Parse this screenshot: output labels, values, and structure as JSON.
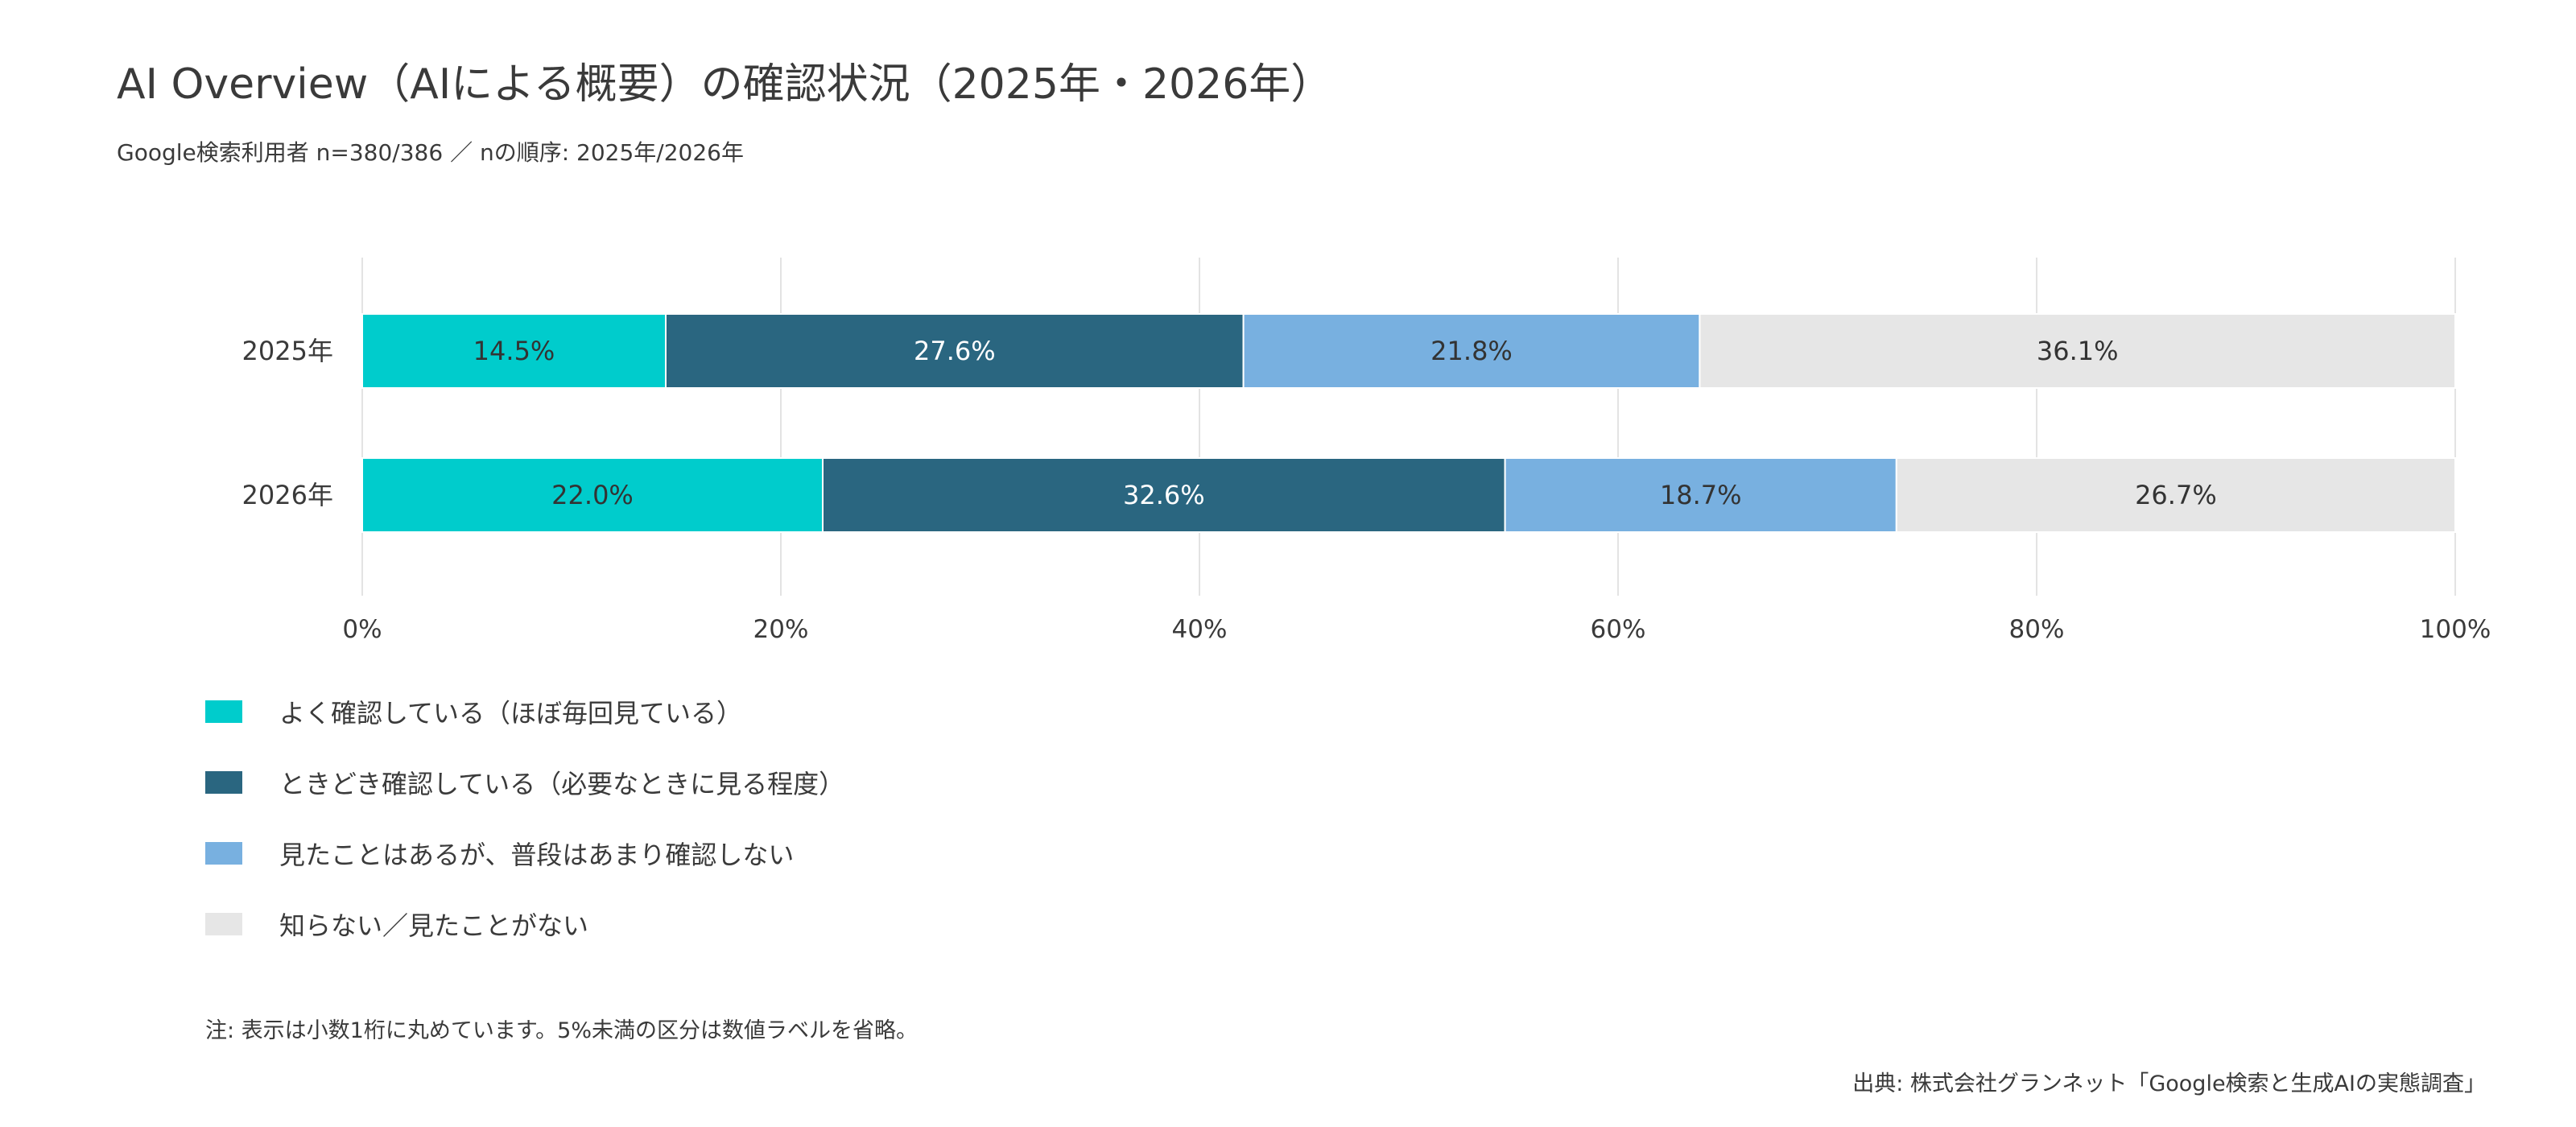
{
  "title": "AI Overview（AIによる概要）の確認状況（2025年・2026年）",
  "subtitle": "Google検索利用者 n=380/386 ／ nの順序: 2025年/2026年",
  "note": "注: 表示は小数1桁に丸めています。5%未満の区分は数値ラベルを省略。",
  "source": "出典: 株式会社グランネット「Google検索と生成AIの実態調査」",
  "chart_data": {
    "type": "bar",
    "orientation": "horizontal",
    "stacked": true,
    "categories": [
      "2025年",
      "2026年"
    ],
    "series": [
      {
        "name": "よく確認している（ほぼ毎回見ている）",
        "values": [
          14.5,
          22.0
        ],
        "color": "#00CCCC",
        "label_color": "#333333"
      },
      {
        "name": "ときどき確認している（必要なときに見る程度）",
        "values": [
          27.6,
          32.6
        ],
        "color": "#2A6680",
        "label_color": "#ffffff"
      },
      {
        "name": "見たことはあるが、普段はあまり確認しない",
        "values": [
          21.8,
          18.7
        ],
        "color": "#78B0E0",
        "label_color": "#333333"
      },
      {
        "name": "知らない／見たことがない",
        "values": [
          36.1,
          26.7
        ],
        "color": "#E6E6E6",
        "label_color": "#333333"
      }
    ],
    "data_labels": [
      [
        "14.5%",
        "22.0%"
      ],
      [
        "27.6%",
        "32.6%"
      ],
      [
        "21.8%",
        "18.7%"
      ],
      [
        "36.1%",
        "26.7%"
      ]
    ],
    "xlim": [
      0,
      100
    ],
    "xticks": [
      0,
      20,
      40,
      60,
      80,
      100
    ],
    "xtick_labels": [
      "0%",
      "20%",
      "40%",
      "60%",
      "80%",
      "100%"
    ],
    "grid": true,
    "legend_position": "bottom-left"
  }
}
